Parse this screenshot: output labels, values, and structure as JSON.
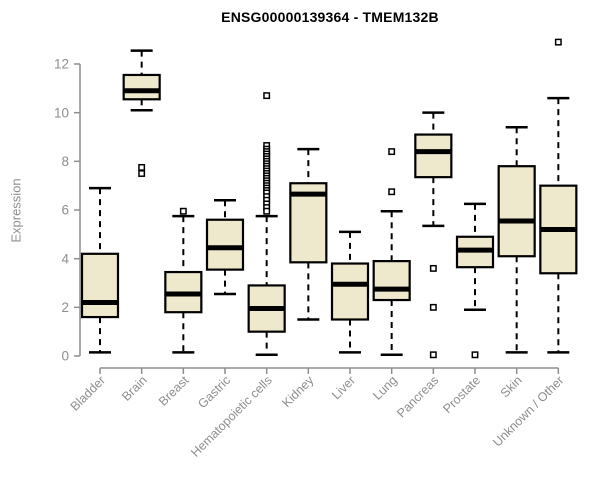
{
  "chart_data": {
    "type": "boxplot",
    "title": "ENSG00000139364 - TMEM132B",
    "ylabel": "Expression",
    "xlabel": "",
    "ylim": [
      0,
      12
    ],
    "yticks": [
      0,
      2,
      4,
      6,
      8,
      10,
      12
    ],
    "grid": false,
    "legend": "none",
    "categories": [
      "Bladder",
      "Brain",
      "Breast",
      "Gastric",
      "Hematopoietic cells",
      "Kidney",
      "Liver",
      "Lung",
      "Pancreas",
      "Prostate",
      "Skin",
      "Unknown / Other"
    ],
    "boxes": [
      {
        "category": "Bladder",
        "low": 0.15,
        "q1": 1.6,
        "median": 2.2,
        "q3": 4.2,
        "high": 6.9,
        "outliers": []
      },
      {
        "category": "Brain",
        "low": 10.1,
        "q1": 10.55,
        "median": 10.9,
        "q3": 11.55,
        "high": 12.55,
        "outliers": [
          7.75,
          7.5
        ]
      },
      {
        "category": "Breast",
        "low": 0.15,
        "q1": 1.8,
        "median": 2.55,
        "q3": 3.45,
        "high": 5.75,
        "outliers": [
          5.95
        ]
      },
      {
        "category": "Gastric",
        "low": 2.55,
        "q1": 3.55,
        "median": 4.45,
        "q3": 5.6,
        "high": 6.4,
        "outliers": []
      },
      {
        "category": "Hematopoietic cells",
        "low": 0.05,
        "q1": 1.0,
        "median": 1.95,
        "q3": 2.9,
        "high": 5.75,
        "outliers": [
          10.7,
          8.65,
          8.5,
          8.4,
          8.3,
          8.2,
          8.1,
          8.0,
          7.9,
          7.8,
          7.7,
          7.6,
          7.5,
          7.4,
          7.3,
          7.2,
          7.1,
          7.0,
          6.9,
          6.8,
          6.7,
          6.55,
          6.4,
          6.25,
          6.1,
          5.95
        ]
      },
      {
        "category": "Kidney",
        "low": 1.5,
        "q1": 3.85,
        "median": 6.65,
        "q3": 7.1,
        "high": 8.5,
        "outliers": []
      },
      {
        "category": "Liver",
        "low": 0.15,
        "q1": 1.5,
        "median": 2.95,
        "q3": 3.8,
        "high": 5.1,
        "outliers": []
      },
      {
        "category": "Lung",
        "low": 0.05,
        "q1": 2.3,
        "median": 2.75,
        "q3": 3.9,
        "high": 5.95,
        "outliers": [
          8.4,
          6.75
        ]
      },
      {
        "category": "Pancreas",
        "low": 5.35,
        "q1": 7.35,
        "median": 8.4,
        "q3": 9.1,
        "high": 10.0,
        "outliers": [
          3.6,
          2.0,
          0.05
        ]
      },
      {
        "category": "Prostate",
        "low": 1.9,
        "q1": 3.65,
        "median": 4.35,
        "q3": 4.9,
        "high": 6.25,
        "outliers": [
          0.05
        ]
      },
      {
        "category": "Skin",
        "low": 0.15,
        "q1": 4.1,
        "median": 5.55,
        "q3": 7.8,
        "high": 9.4,
        "outliers": []
      },
      {
        "category": "Unknown / Other",
        "low": 0.15,
        "q1": 3.4,
        "median": 5.2,
        "q3": 7.0,
        "high": 10.6,
        "outliers": [
          12.9
        ]
      }
    ],
    "colors": {
      "box_fill": "#EEE8CD",
      "box_stroke": "#000000",
      "median": "#000000",
      "whisker": "#000000",
      "axis": "#8e8e8e",
      "tick_label": "#8e8e8e",
      "title": "#000000",
      "background": "#ffffff"
    }
  }
}
